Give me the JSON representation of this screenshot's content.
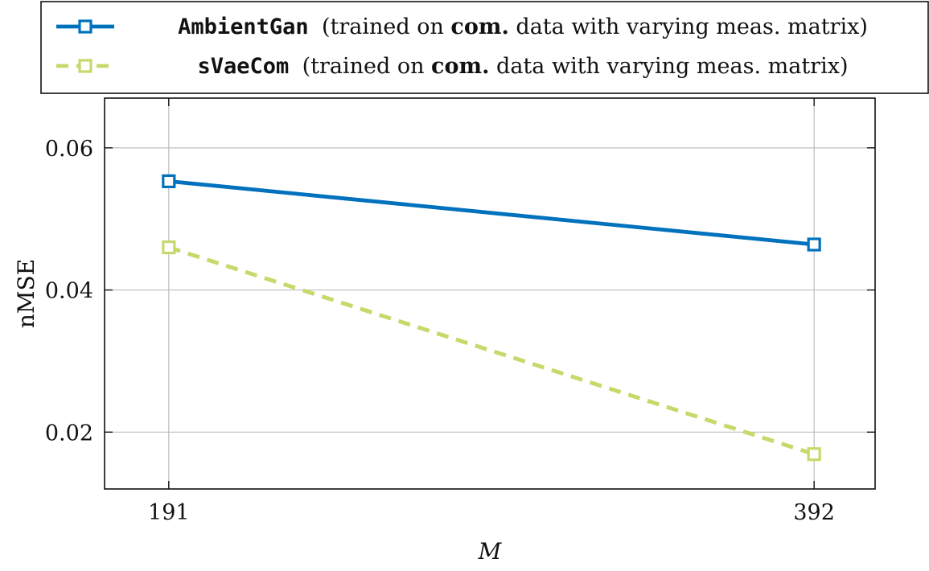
{
  "chart_data": {
    "type": "line",
    "x": [
      191,
      392
    ],
    "xticks": [
      191,
      392
    ],
    "yticks": [
      0.02,
      0.04,
      0.06
    ],
    "xlim": [
      171,
      411
    ],
    "ylim": [
      0.012,
      0.067
    ],
    "xlabel": "M",
    "ylabel": "nMSE",
    "grid": true,
    "legend_position": "top",
    "series": [
      {
        "name": "AmbientGan",
        "values": [
          0.0553,
          0.0464
        ],
        "color": "#0072BD",
        "style": "solid",
        "marker": "square"
      },
      {
        "name": "sVaeCom",
        "values": [
          0.046,
          0.0169
        ],
        "color": "#C5DA6B",
        "style": "dashed",
        "marker": "square"
      }
    ],
    "legend": [
      {
        "name": "AmbientGan",
        "pre": "(trained on ",
        "bold": "com.",
        "post": " data with varying meas. matrix)"
      },
      {
        "name": "sVaeCom",
        "pre": "(trained on ",
        "bold": "com.",
        "post": " data with varying meas. matrix)"
      }
    ]
  }
}
